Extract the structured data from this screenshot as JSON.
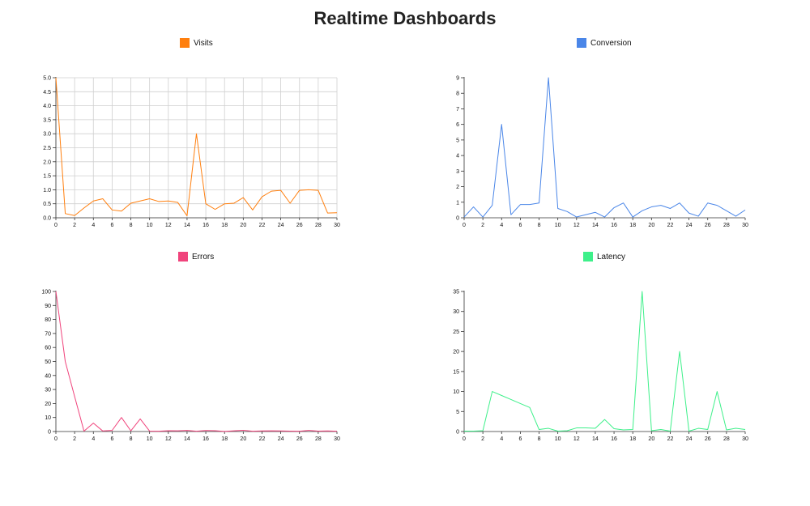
{
  "page": {
    "title": "Realtime Dashboards"
  },
  "chart_data": [
    {
      "type": "line",
      "name": "visits",
      "legend": "Visits",
      "color": "#ff7f0e",
      "grid": true,
      "xlim": [
        0,
        30
      ],
      "ylim": [
        0,
        5
      ],
      "xticks": [
        0,
        2,
        4,
        6,
        8,
        10,
        12,
        14,
        16,
        18,
        20,
        22,
        24,
        26,
        28,
        30
      ],
      "yticks": [
        0,
        0.5,
        1,
        1.5,
        2,
        2.5,
        3,
        3.5,
        4,
        4.5,
        5
      ],
      "ytick_labels": [
        "0.0",
        "0.5",
        "1.0",
        "1.5",
        "2.0",
        "2.5",
        "3.0",
        "3.5",
        "4.0",
        "4.5",
        "5.0"
      ],
      "x": [
        0,
        1,
        2,
        3,
        4,
        5,
        6,
        7,
        8,
        9,
        10,
        11,
        12,
        13,
        14,
        15,
        16,
        17,
        18,
        19,
        20,
        21,
        22,
        23,
        24,
        25,
        26,
        27,
        28,
        29,
        30
      ],
      "values": [
        5.0,
        0.15,
        0.08,
        0.35,
        0.6,
        0.68,
        0.28,
        0.24,
        0.52,
        0.6,
        0.68,
        0.58,
        0.6,
        0.55,
        0.07,
        3.0,
        0.5,
        0.3,
        0.5,
        0.52,
        0.72,
        0.28,
        0.75,
        0.95,
        0.98,
        0.52,
        0.98,
        1.0,
        0.98,
        0.17,
        0.18
      ]
    },
    {
      "type": "line",
      "name": "conversion",
      "legend": "Conversion",
      "color": "#4a86e8",
      "grid": false,
      "xlim": [
        0,
        30
      ],
      "ylim": [
        0,
        9
      ],
      "xticks": [
        0,
        2,
        4,
        6,
        8,
        10,
        12,
        14,
        16,
        18,
        20,
        22,
        24,
        26,
        28,
        30
      ],
      "yticks": [
        0,
        1,
        2,
        3,
        4,
        5,
        6,
        7,
        8,
        9
      ],
      "ytick_labels": [
        "0",
        "1",
        "2",
        "3",
        "4",
        "5",
        "6",
        "7",
        "8",
        "9"
      ],
      "x": [
        0,
        1,
        2,
        3,
        4,
        5,
        6,
        7,
        8,
        9,
        10,
        11,
        12,
        13,
        14,
        15,
        16,
        17,
        18,
        19,
        20,
        21,
        22,
        23,
        24,
        25,
        26,
        27,
        28,
        29,
        30
      ],
      "values": [
        0.05,
        0.7,
        0.05,
        0.8,
        6.0,
        0.2,
        0.85,
        0.85,
        0.95,
        9.0,
        0.6,
        0.4,
        0.05,
        0.2,
        0.35,
        0.05,
        0.65,
        0.95,
        0.05,
        0.45,
        0.7,
        0.8,
        0.6,
        0.95,
        0.3,
        0.1,
        0.95,
        0.8,
        0.45,
        0.1,
        0.5
      ]
    },
    {
      "type": "line",
      "name": "errors",
      "legend": "Errors",
      "color": "#f0447c",
      "grid": false,
      "xlim": [
        0,
        30
      ],
      "ylim": [
        0,
        100
      ],
      "xticks": [
        0,
        2,
        4,
        6,
        8,
        10,
        12,
        14,
        16,
        18,
        20,
        22,
        24,
        26,
        28,
        30
      ],
      "yticks": [
        0,
        10,
        20,
        30,
        40,
        50,
        60,
        70,
        80,
        90,
        100
      ],
      "ytick_labels": [
        "0",
        "10",
        "20",
        "30",
        "40",
        "50",
        "60",
        "70",
        "80",
        "90",
        "100"
      ],
      "x": [
        0,
        1,
        2,
        3,
        4,
        5,
        6,
        7,
        8,
        9,
        10,
        11,
        12,
        13,
        14,
        15,
        16,
        17,
        18,
        19,
        20,
        21,
        22,
        23,
        24,
        25,
        26,
        27,
        28,
        29,
        30
      ],
      "values": [
        100,
        50,
        25,
        0.3,
        6,
        0.4,
        0.8,
        10,
        0.5,
        9,
        0.3,
        0.2,
        0.6,
        0.5,
        0.8,
        0.2,
        0.7,
        0.6,
        0.1,
        0.5,
        0.9,
        0.2,
        0.4,
        0.5,
        0.4,
        0.3,
        0.2,
        0.8,
        0.3,
        0.4,
        0.2
      ]
    },
    {
      "type": "line",
      "name": "latency",
      "legend": "Latency",
      "color": "#3ef08a",
      "grid": false,
      "xlim": [
        0,
        30
      ],
      "ylim": [
        0,
        35
      ],
      "xticks": [
        0,
        2,
        4,
        6,
        8,
        10,
        12,
        14,
        16,
        18,
        20,
        22,
        24,
        26,
        28,
        30
      ],
      "yticks": [
        0,
        5,
        10,
        15,
        20,
        25,
        30,
        35
      ],
      "ytick_labels": [
        "0",
        "5",
        "10",
        "15",
        "20",
        "25",
        "30",
        "35"
      ],
      "x": [
        0,
        1,
        2,
        3,
        4,
        5,
        6,
        7,
        8,
        9,
        10,
        11,
        12,
        13,
        14,
        15,
        16,
        17,
        18,
        19,
        20,
        21,
        22,
        23,
        24,
        25,
        26,
        27,
        28,
        29,
        30
      ],
      "values": [
        0.1,
        0.1,
        0.2,
        10,
        9,
        8,
        7,
        6,
        0.5,
        0.8,
        0.1,
        0.2,
        0.9,
        0.9,
        0.8,
        3.0,
        0.7,
        0.4,
        0.5,
        35,
        0.2,
        0.5,
        0.1,
        20,
        0.1,
        0.8,
        0.5,
        10,
        0.4,
        0.8,
        0.5
      ]
    }
  ]
}
